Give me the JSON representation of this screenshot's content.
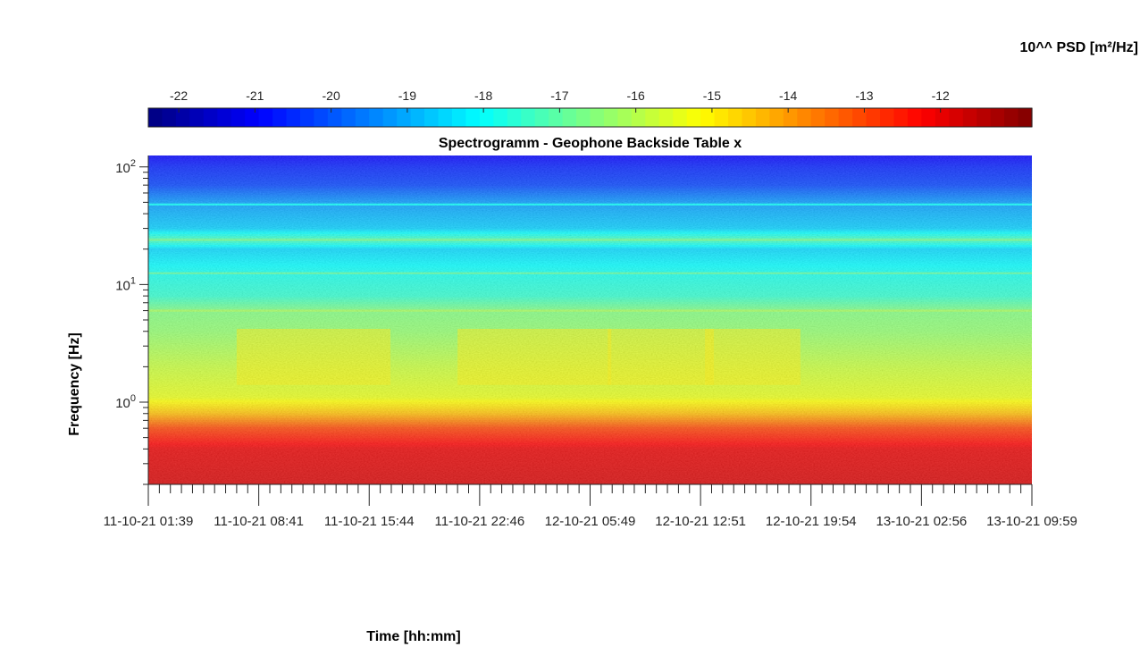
{
  "chart_data": {
    "type": "heatmap",
    "title": "Spectrogramm - Geophone Backside Table x",
    "xlabel": "Time [hh:mm]",
    "ylabel": "Frequency [Hz]",
    "y_scale": "log",
    "ylim": [
      0.2,
      125
    ],
    "y_ticks": [
      {
        "value": 100,
        "base": "10",
        "exp": "2"
      },
      {
        "value": 10,
        "base": "10",
        "exp": "1"
      },
      {
        "value": 1,
        "base": "10",
        "exp": "0"
      }
    ],
    "x_tick_labels": [
      "11-10-21  01:39",
      "11-10-21  08:41",
      "11-10-21  15:44",
      "11-10-21  22:46",
      "12-10-21  05:49",
      "12-10-21  12:51",
      "12-10-21  19:54",
      "13-10-21  02:56",
      "13-10-21  09:59"
    ],
    "colorbar": {
      "label": "10^^ PSD [m²/Hz]",
      "min": -22.4,
      "max": -10.8,
      "ticks": [
        -22,
        -21,
        -20,
        -19,
        -18,
        -17,
        -16,
        -15,
        -14,
        -13,
        -12
      ],
      "colormap": "jet",
      "orientation": "horizontal",
      "placement": "top"
    },
    "approx_log10_psd_profile": [
      {
        "freq_hz": 125,
        "value": -21.0
      },
      {
        "freq_hz": 100,
        "value": -20.6
      },
      {
        "freq_hz": 70,
        "value": -20.2
      },
      {
        "freq_hz": 50,
        "value": -19.2
      },
      {
        "freq_hz": 30,
        "value": -18.6
      },
      {
        "freq_hz": 24,
        "value": -17.2
      },
      {
        "freq_hz": 20,
        "value": -18.5
      },
      {
        "freq_hz": 12,
        "value": -17.8
      },
      {
        "freq_hz": 8,
        "value": -17.5
      },
      {
        "freq_hz": 6,
        "value": -16.6
      },
      {
        "freq_hz": 4,
        "value": -16.4
      },
      {
        "freq_hz": 2,
        "value": -15.8
      },
      {
        "freq_hz": 1.1,
        "value": -15.4
      },
      {
        "freq_hz": 0.8,
        "value": -14.4
      },
      {
        "freq_hz": 0.6,
        "value": -13.0
      },
      {
        "freq_hz": 0.4,
        "value": -12.0
      },
      {
        "freq_hz": 0.2,
        "value": -11.8
      }
    ]
  }
}
